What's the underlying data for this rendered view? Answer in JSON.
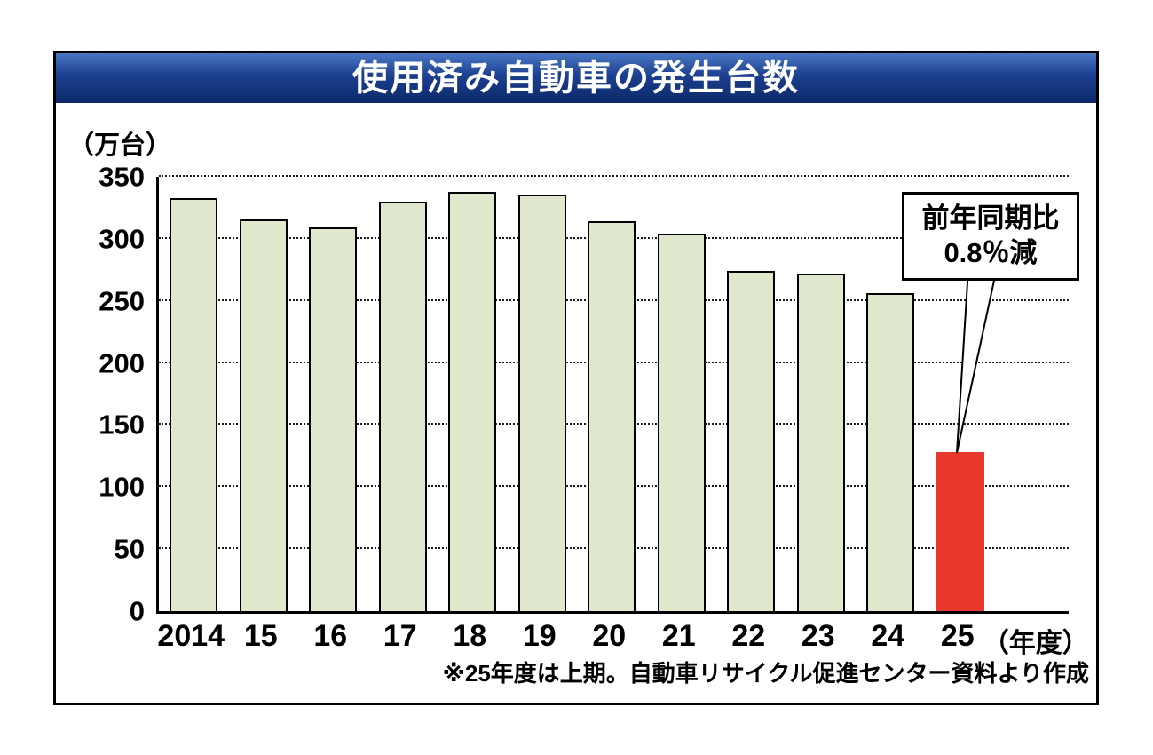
{
  "title": "使用済み自動車の発生台数",
  "unit_label": "（万台）",
  "axis_suffix": "（年度）",
  "footnote": "※25年度は上期。自動車リサイクル促進センター資料より作成",
  "callout": {
    "line1": "前年同期比",
    "line2": "0.8％減"
  },
  "colors": {
    "bar": "#dfe8cc",
    "bar_border": "#000000",
    "highlight": "#e8382d",
    "title_bg": "#1c3f8f",
    "title_text": "#ffffff"
  },
  "chart_data": {
    "type": "bar",
    "title": "使用済み自動車の発生台数",
    "ylabel": "（万台）",
    "categories": [
      "2014",
      "15",
      "16",
      "17",
      "18",
      "19",
      "20",
      "21",
      "22",
      "23",
      "24",
      "25"
    ],
    "values": [
      333,
      316,
      309,
      330,
      338,
      336,
      314,
      304,
      274,
      272,
      256,
      128
    ],
    "highlight_index": 11,
    "highlight_note": "前年同期比0.8％減",
    "ylim": [
      0,
      350
    ],
    "yticks": [
      0,
      50,
      100,
      150,
      200,
      250,
      300,
      350
    ],
    "grid": "horizontal-dotted",
    "legend": "none",
    "note": "25年度は上期。自動車リサイクル促進センター資料より作成"
  }
}
